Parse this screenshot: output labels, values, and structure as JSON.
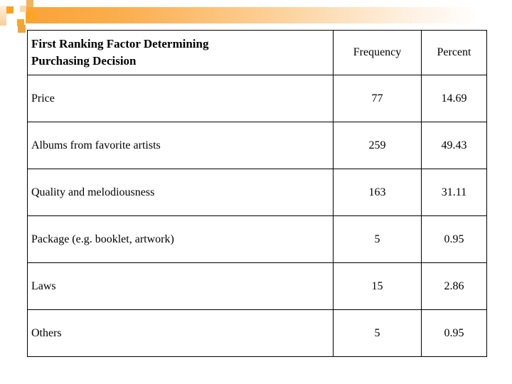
{
  "slide": {
    "background_color": "#ffffff"
  },
  "decor": {
    "bar_gradient_start": "#faa337",
    "bar_gradient_end": "#ffffff",
    "square_colors": [
      "#f2b45a",
      "#fbd9a6",
      "#ffa01e",
      "#fdf0dc",
      "#ffa41e",
      "#f7a62f",
      "#f2a337"
    ]
  },
  "table": {
    "title": "First Ranking Factor Determining\nPurchasing Decision",
    "columns": {
      "frequency": "Frequency",
      "percent": "Percent"
    },
    "rows": [
      {
        "label": "Price",
        "frequency": "77",
        "percent": "14.69"
      },
      {
        "label": "Albums from favorite artists",
        "frequency": "259",
        "percent": "49.43"
      },
      {
        "label": "Quality and melodiousness",
        "frequency": "163",
        "percent": "31.11"
      },
      {
        "label": "Package (e.g. booklet, artwork)",
        "frequency": "5",
        "percent": "0.95"
      },
      {
        "label": "Laws",
        "frequency": "15",
        "percent": "2.86"
      },
      {
        "label": "Others",
        "frequency": "5",
        "percent": "0.95"
      }
    ]
  },
  "chart_data": {
    "type": "table",
    "title": "First Ranking Factor Determining Purchasing Decision",
    "categories": [
      "Price",
      "Albums from favorite artists",
      "Quality and melodiousness",
      "Package (e.g. booklet, artwork)",
      "Laws",
      "Others"
    ],
    "series": [
      {
        "name": "Frequency",
        "values": [
          77,
          259,
          163,
          5,
          15,
          5
        ]
      },
      {
        "name": "Percent",
        "values": [
          14.69,
          49.43,
          31.11,
          0.95,
          2.86,
          0.95
        ]
      }
    ]
  }
}
